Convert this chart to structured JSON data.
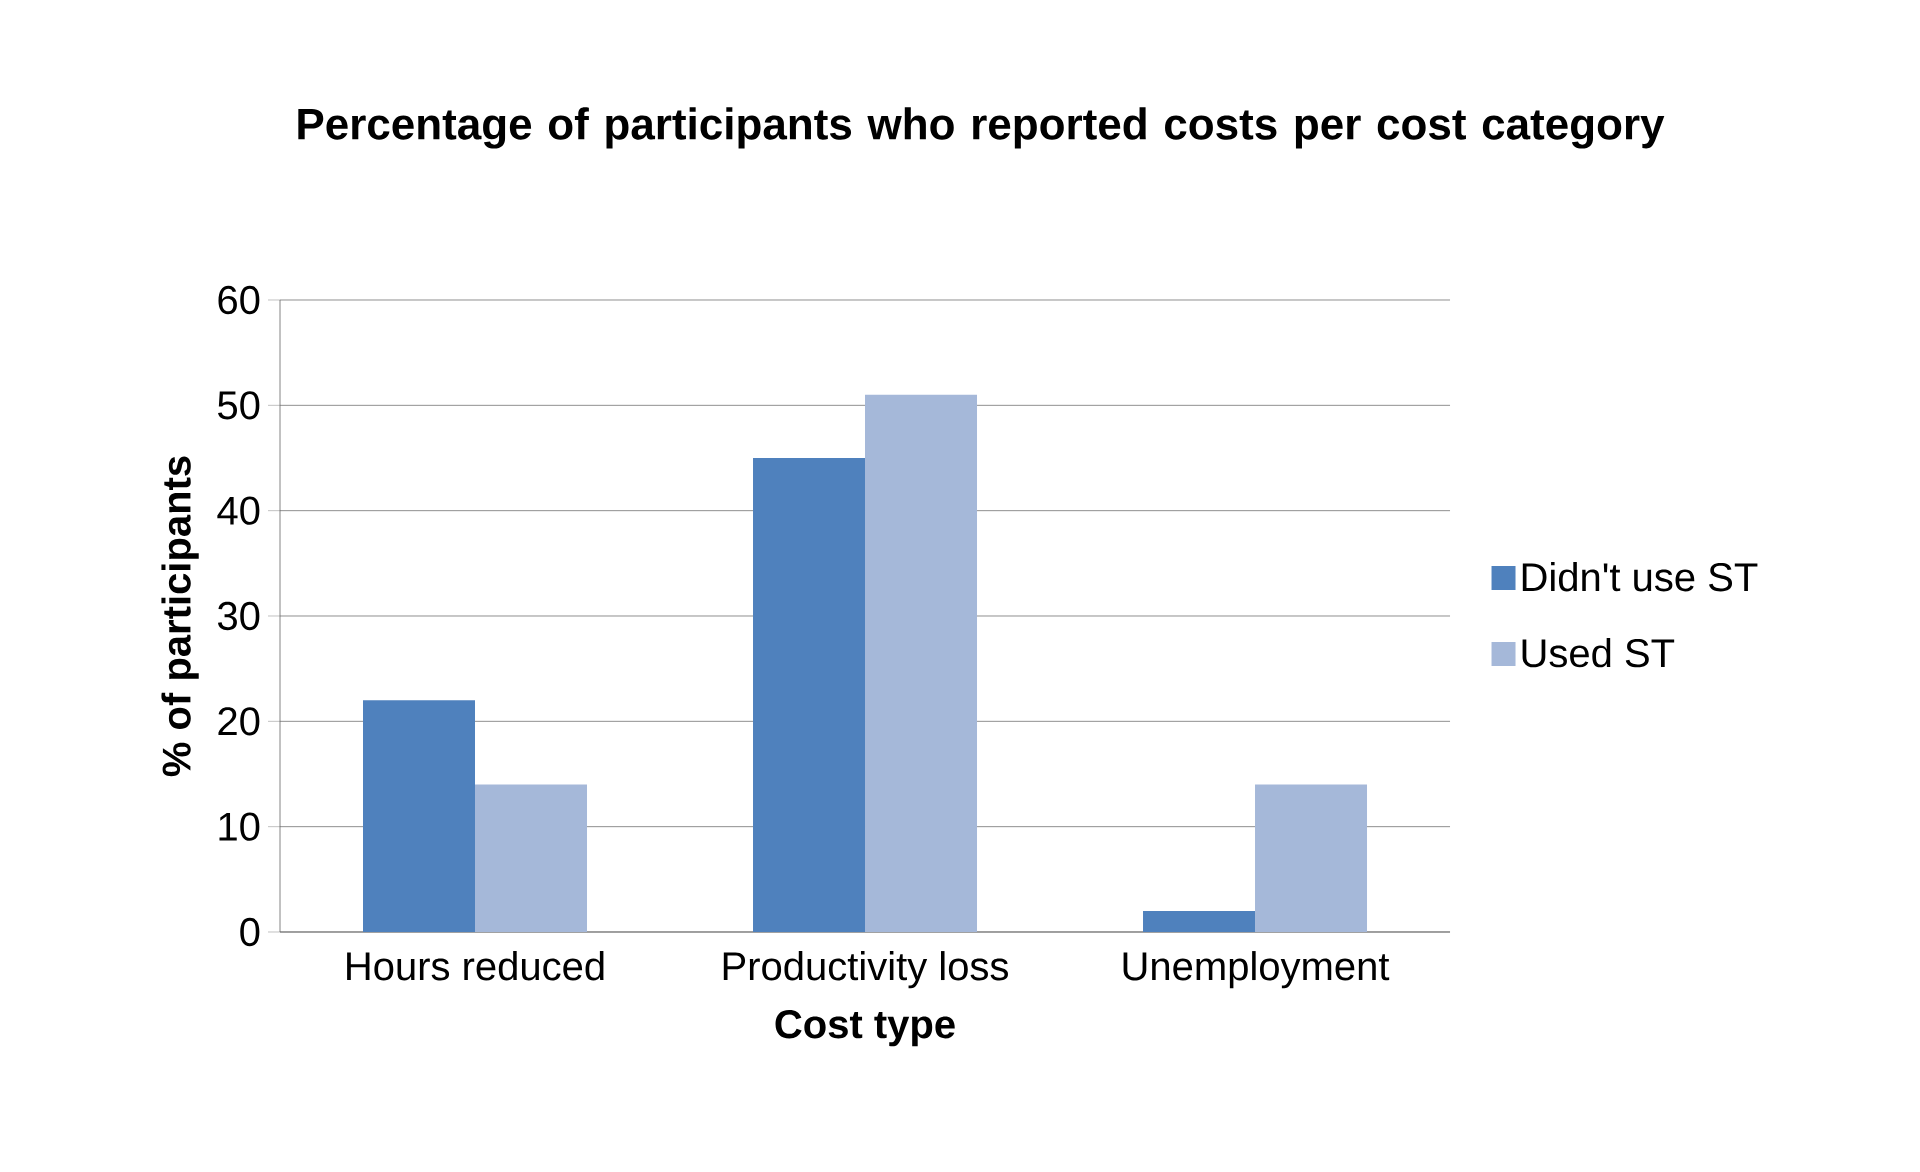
{
  "chart_data": {
    "type": "bar",
    "title": "Percentage of participants who reported costs per cost category",
    "xlabel": "Cost type",
    "ylabel": "% of participants",
    "categories": [
      "Hours reduced",
      "Productivity loss",
      "Unemployment"
    ],
    "series": [
      {
        "name": "Didn't use ST",
        "color": "#4f81bd",
        "values": [
          22,
          45,
          2
        ]
      },
      {
        "name": "Used ST",
        "color": "#a5b8d9",
        "values": [
          14,
          51,
          14
        ]
      }
    ],
    "ylim": [
      0,
      60
    ],
    "yticks": [
      0,
      10,
      20,
      30,
      40,
      50,
      60
    ],
    "grid": "y",
    "legend": "right"
  }
}
